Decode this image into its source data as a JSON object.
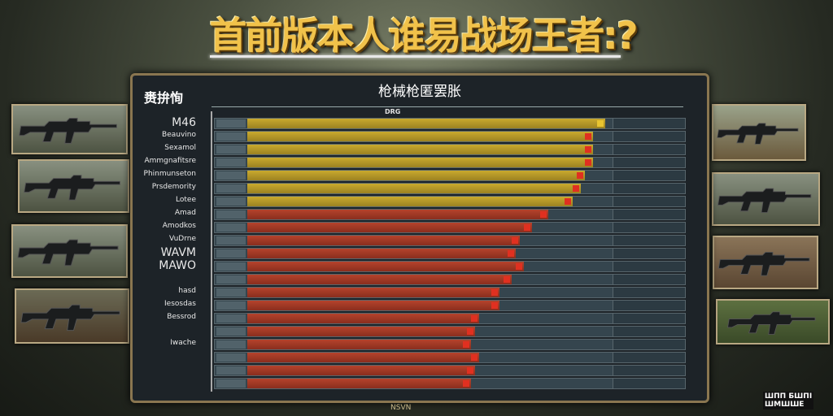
{
  "title": "首前版本人谁易战场王者:?",
  "panel": {
    "title": "枪械枪匿罢胀",
    "y_header": "赉拚恂",
    "top_tick": "DRG",
    "corner_tick": "??"
  },
  "rows": [
    {
      "label": "M46",
      "big": true,
      "color": "yellow",
      "fill": 88
    },
    {
      "label": "Beauvino",
      "color": "yellow",
      "fill": 85
    },
    {
      "label": "Sexamol",
      "color": "yellow",
      "fill": 85
    },
    {
      "label": "Ammgnafitsre",
      "color": "yellow",
      "fill": 85
    },
    {
      "label": "Phinmunseton",
      "color": "yellow",
      "fill": 83
    },
    {
      "label": "Prsdemority",
      "color": "yellow",
      "fill": 82
    },
    {
      "label": "Lotee",
      "color": "yellow",
      "fill": 80
    },
    {
      "label": "Amad",
      "color": "red",
      "fill": 74
    },
    {
      "label": "Amodkos",
      "color": "red",
      "fill": 70
    },
    {
      "label": "VuDrne",
      "color": "red",
      "fill": 67
    },
    {
      "label": "WAVM",
      "big": true,
      "color": "red",
      "fill": 66
    },
    {
      "label": "MAWO",
      "big": true,
      "color": "red",
      "fill": 68
    },
    {
      "label": "",
      "color": "red",
      "fill": 65
    },
    {
      "label": "hasd",
      "color": "red",
      "fill": 62
    },
    {
      "label": "Iesosdas",
      "color": "red",
      "fill": 62
    },
    {
      "label": "Bessrod",
      "color": "red",
      "fill": 57
    },
    {
      "label": "",
      "color": "red",
      "fill": 56
    },
    {
      "label": "Iwache",
      "color": "red",
      "fill": 55
    },
    {
      "label": "",
      "color": "red",
      "fill": 57
    },
    {
      "label": "",
      "color": "red",
      "fill": 56
    },
    {
      "label": "",
      "color": "red",
      "fill": 55
    }
  ],
  "colors": {
    "yellow": "#c9a92e",
    "red": "#b5432c",
    "gold": "#f1c24a"
  },
  "footer": "NSVN",
  "logo": "ШПП БШПІ ШМШШЕ"
}
